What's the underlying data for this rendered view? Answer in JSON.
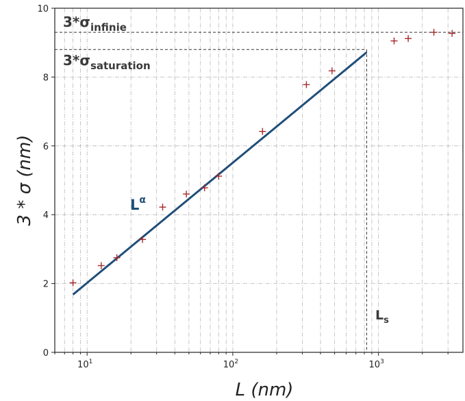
{
  "chart_data": {
    "type": "scatter",
    "xlabel": "L (nm)",
    "ylabel": "3 * σ (nm)",
    "xscale": "log",
    "xlim": [
      6.0,
      3800
    ],
    "ylim": [
      0,
      10
    ],
    "yticks": [
      0,
      2,
      4,
      6,
      8,
      10
    ],
    "xticks": [
      {
        "value": 10,
        "label_base": "10",
        "label_exp": "1"
      },
      {
        "value": 100,
        "label_base": "10",
        "label_exp": "2"
      },
      {
        "value": 1000,
        "label_base": "10",
        "label_exp": "3"
      }
    ],
    "grid": true,
    "series": [
      {
        "marker": "+",
        "color": "#a52a2a",
        "points": [
          {
            "x": 8,
            "y": 2.02
          },
          {
            "x": 12.5,
            "y": 2.52
          },
          {
            "x": 16,
            "y": 2.75
          },
          {
            "x": 24,
            "y": 3.28
          },
          {
            "x": 33,
            "y": 4.22
          },
          {
            "x": 48,
            "y": 4.6
          },
          {
            "x": 64,
            "y": 4.78
          },
          {
            "x": 80,
            "y": 5.12
          },
          {
            "x": 160,
            "y": 6.42
          },
          {
            "x": 320,
            "y": 7.78
          },
          {
            "x": 480,
            "y": 8.18
          },
          {
            "x": 1280,
            "y": 9.05
          },
          {
            "x": 1600,
            "y": 9.12
          },
          {
            "x": 2400,
            "y": 9.3
          },
          {
            "x": 3200,
            "y": 9.27
          }
        ]
      }
    ],
    "fit_line": {
      "color": "#1f4e79",
      "x0": 8,
      "y0": 1.68,
      "x1": 830,
      "y1": 8.72,
      "label_base": "L",
      "label_sup": "α"
    },
    "reference_lines": [
      {
        "orientation": "horizontal",
        "y": 9.3,
        "text_base": "3*σ",
        "text_sub": "infinie"
      },
      {
        "orientation": "horizontal",
        "y": 8.8,
        "x_end": 830,
        "text_base": "3*σ",
        "text_sub": "saturation"
      },
      {
        "orientation": "vertical",
        "x": 830,
        "text_base": "L",
        "text_sub": "s"
      }
    ]
  }
}
